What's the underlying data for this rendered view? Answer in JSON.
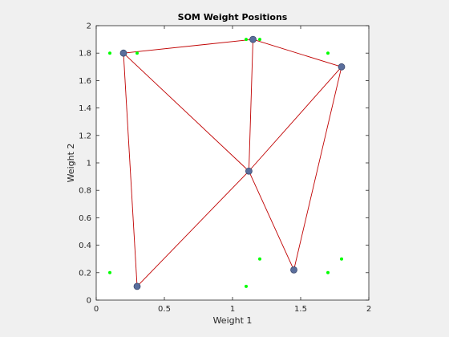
{
  "chart_data": {
    "type": "scatter",
    "title": "SOM Weight Positions",
    "xlabel": "Weight 1",
    "ylabel": "Weight 2",
    "xlim": [
      0,
      2
    ],
    "ylim": [
      0,
      2
    ],
    "xticks": [
      "0",
      "0.5",
      "1",
      "1.5",
      "2"
    ],
    "yticks": [
      "0",
      "0.2",
      "0.4",
      "0.6",
      "0.8",
      "1",
      "1.2",
      "1.4",
      "1.6",
      "1.8",
      "2"
    ],
    "grid": false,
    "data_points": {
      "color": "#00ff00",
      "points": [
        [
          0.1,
          1.8
        ],
        [
          0.3,
          1.8
        ],
        [
          1.1,
          1.9
        ],
        [
          1.2,
          1.9
        ],
        [
          1.7,
          1.8
        ],
        [
          0.1,
          0.2
        ],
        [
          1.1,
          0.1
        ],
        [
          1.2,
          0.3
        ],
        [
          1.7,
          0.2
        ],
        [
          1.8,
          0.3
        ]
      ]
    },
    "neurons": {
      "color": "#5a6e9c",
      "points": [
        [
          0.2,
          1.8
        ],
        [
          1.15,
          1.9
        ],
        [
          1.8,
          1.7
        ],
        [
          1.12,
          0.94
        ],
        [
          0.3,
          0.1
        ],
        [
          1.45,
          0.22
        ]
      ]
    },
    "neighbor_lines": {
      "color": "#c00000",
      "edges": [
        [
          0,
          1
        ],
        [
          1,
          2
        ],
        [
          0,
          3
        ],
        [
          1,
          3
        ],
        [
          2,
          3
        ],
        [
          0,
          4
        ],
        [
          3,
          4
        ],
        [
          3,
          5
        ],
        [
          2,
          5
        ]
      ]
    }
  }
}
